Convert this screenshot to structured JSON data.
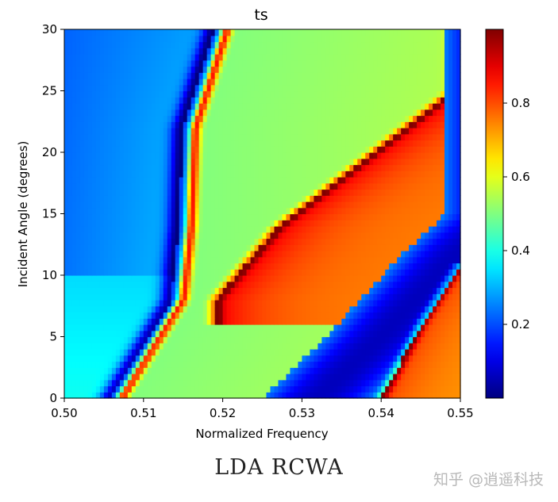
{
  "chart_data": {
    "type": "heatmap",
    "title": "ts",
    "xlabel": "Normalized Frequency",
    "ylabel": "Incident Angle (degrees)",
    "xlim": [
      0.5,
      0.55
    ],
    "ylim": [
      0,
      30
    ],
    "xticks": [
      "0.50",
      "0.51",
      "0.52",
      "0.53",
      "0.54",
      "0.55"
    ],
    "yticks": [
      "0",
      "5",
      "10",
      "15",
      "20",
      "25",
      "30"
    ],
    "colorbar": {
      "colormap": "jet",
      "range": [
        0,
        1
      ],
      "ticks": [
        "0.2",
        "0.4",
        "0.6",
        "0.8"
      ]
    },
    "grid_resolution": {
      "nx": 100,
      "ny": 60
    },
    "features": [
      {
        "name": "low-transmission band near 0.514",
        "points": [
          [
            0.5057,
            0
          ],
          [
            0.5135,
            8
          ],
          [
            0.5145,
            14
          ],
          [
            0.515,
            22
          ],
          [
            0.519,
            30
          ]
        ]
      },
      {
        "name": "peak line upper",
        "points": [
          [
            0.519,
            8
          ],
          [
            0.527,
            14
          ],
          [
            0.535,
            18
          ],
          [
            0.549,
            25
          ]
        ]
      },
      {
        "name": "dip band middle",
        "points": [
          [
            0.527,
            0
          ],
          [
            0.535,
            5
          ],
          [
            0.545,
            12
          ],
          [
            0.55,
            15
          ]
        ]
      },
      {
        "name": "peak line lower",
        "points": [
          [
            0.54,
            0
          ],
          [
            0.545,
            6
          ],
          [
            0.55,
            11
          ]
        ]
      }
    ]
  },
  "caption": "LDA RCWA",
  "watermark": "知乎 @逍遥科技"
}
